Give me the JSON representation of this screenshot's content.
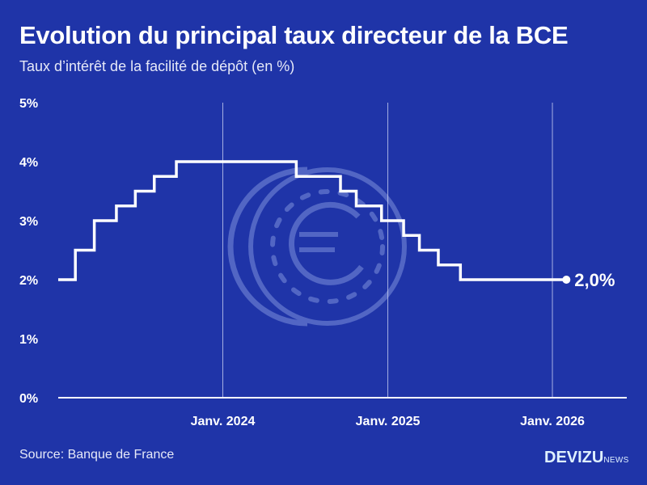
{
  "title": "Evolution du principal taux directeur de la BCE",
  "subtitle": "Taux d’intérêt de la facilité de dépôt (en %)",
  "source": "Source: Banque de France",
  "logo": {
    "main": "DEVIZU",
    "suffix": "NEWS"
  },
  "colors": {
    "background": "#1f34a8",
    "line": "#ffffff",
    "coin": "#5b6fc9"
  },
  "chart_data": {
    "type": "line",
    "step": true,
    "title": "Evolution du principal taux directeur de la BCE",
    "subtitle": "Taux d’intérêt de la facilité de dépôt (en %)",
    "ylim": [
      0,
      5
    ],
    "yticks": [
      "0%",
      "1%",
      "2%",
      "3%",
      "4%",
      "5%"
    ],
    "xticks": [
      {
        "date": "2024-01-01",
        "label": "Janv. 2024"
      },
      {
        "date": "2025-01-01",
        "label": "Janv. 2025"
      },
      {
        "date": "2026-01-01",
        "label": "Janv. 2026"
      }
    ],
    "grid": "vertical at x ticks",
    "points": [
      [
        "2023-01-01",
        2.0
      ],
      [
        "2023-02-08",
        2.5
      ],
      [
        "2023-03-22",
        3.0
      ],
      [
        "2023-05-10",
        3.25
      ],
      [
        "2023-06-21",
        3.5
      ],
      [
        "2023-08-02",
        3.75
      ],
      [
        "2023-09-20",
        4.0
      ],
      [
        "2024-06-12",
        3.75
      ],
      [
        "2024-09-18",
        3.5
      ],
      [
        "2024-10-23",
        3.25
      ],
      [
        "2024-12-18",
        3.0
      ],
      [
        "2025-02-05",
        2.75
      ],
      [
        "2025-03-12",
        2.5
      ],
      [
        "2025-04-23",
        2.25
      ],
      [
        "2025-06-11",
        2.0
      ]
    ],
    "end_date": "2026-02-01",
    "end_label": "2,0%"
  }
}
